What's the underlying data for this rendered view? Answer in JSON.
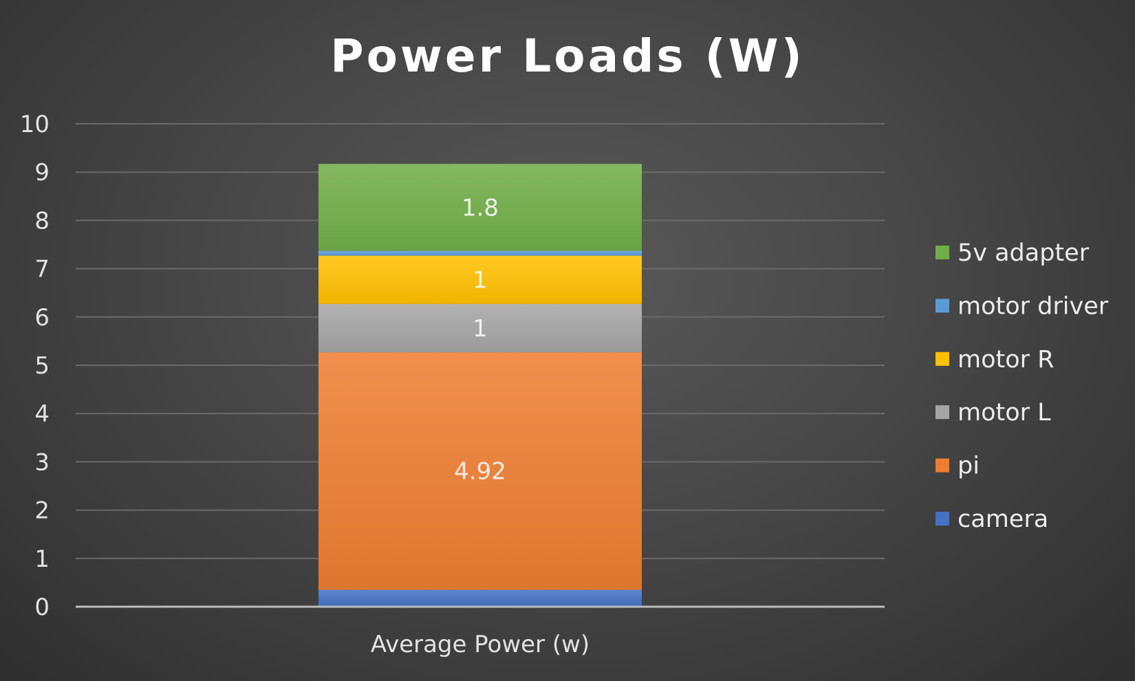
{
  "chart_data": {
    "type": "bar",
    "stacked": true,
    "title": "Power Loads (W)",
    "categories": [
      "Average Power (w)"
    ],
    "ylim": [
      0,
      10
    ],
    "yticks": [
      0,
      1,
      2,
      3,
      4,
      5,
      6,
      7,
      8,
      9,
      10
    ],
    "grid": true,
    "legend_position": "right",
    "series": [
      {
        "name": "camera",
        "values": [
          0.35
        ],
        "color": "#4472C4",
        "label": ""
      },
      {
        "name": "pi",
        "values": [
          4.92
        ],
        "color": "#ED7D31",
        "label": "4.92"
      },
      {
        "name": "motor L",
        "values": [
          1
        ],
        "color": "#A5A5A5",
        "label": "1"
      },
      {
        "name": "motor R",
        "values": [
          1
        ],
        "color": "#FFC000",
        "label": "1"
      },
      {
        "name": "motor driver",
        "values": [
          0.1
        ],
        "color": "#5B9BD5",
        "label": ""
      },
      {
        "name": "5v adapter",
        "values": [
          1.8
        ],
        "color": "#70AD47",
        "label": "1.8"
      }
    ]
  }
}
